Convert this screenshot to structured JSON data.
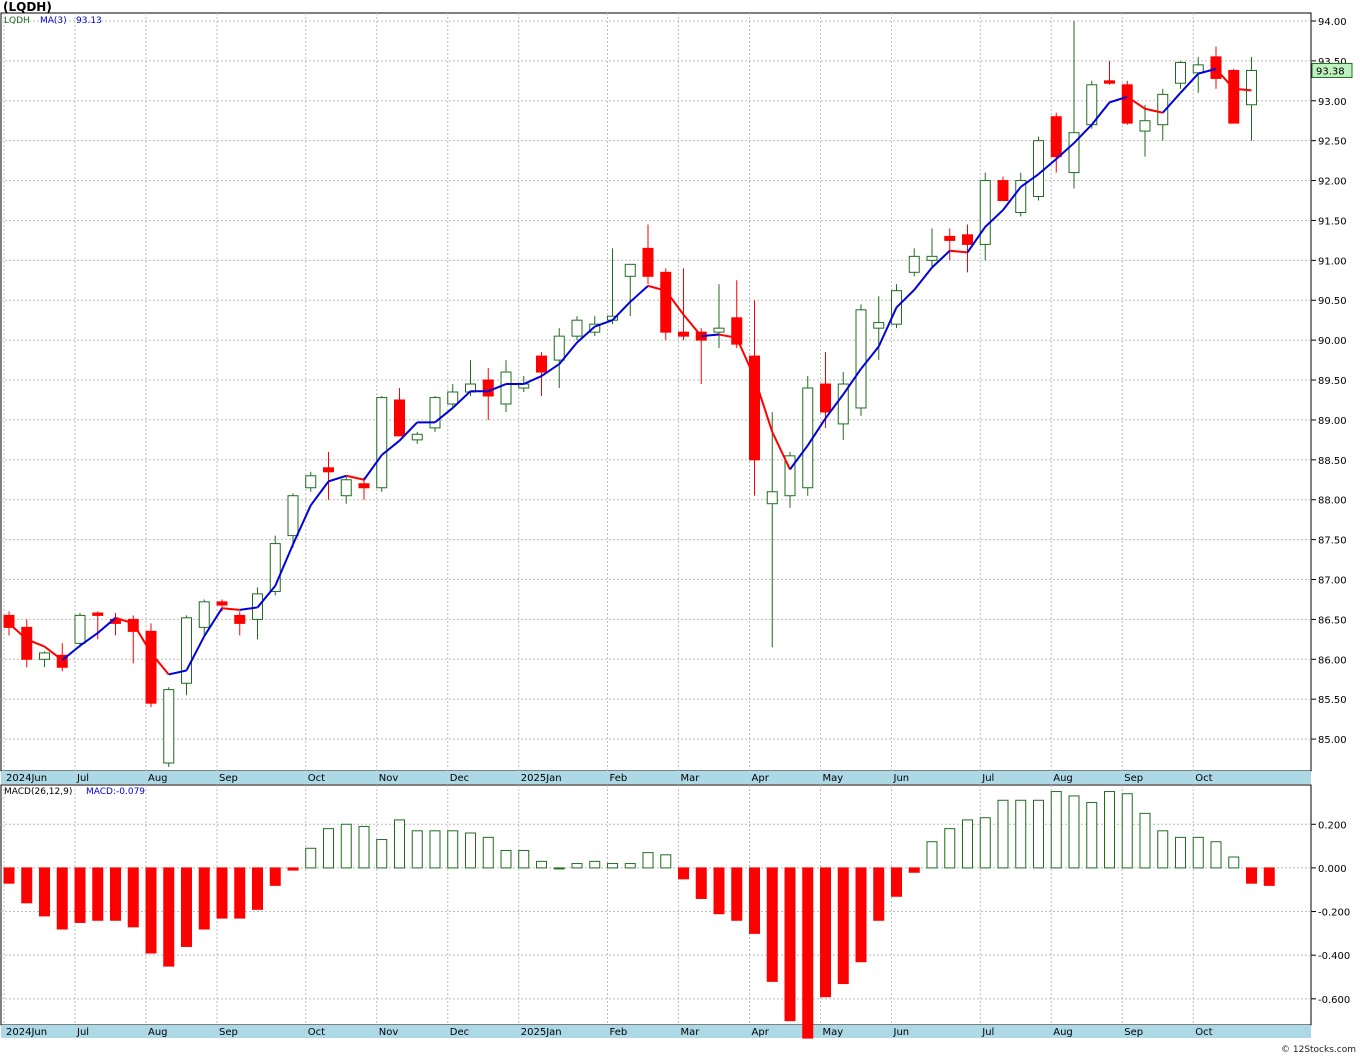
{
  "title": "(LQDH)",
  "credit": "© 12Stocks.com",
  "colors": {
    "up": "#1f6e1f",
    "down": "#ff0000",
    "ma_up": "#0000dd",
    "ma_down": "#ff0000",
    "axis_strip": "#add8e6",
    "last_price_bg": "#bff0bf"
  },
  "chart_data": [
    {
      "type": "candlestick",
      "legend": {
        "symbol": "LQDH",
        "ma_label": "MA(3)",
        "ma_value": "93.13"
      },
      "last_price": "93.38",
      "y_ticks": [
        "85.00",
        "85.50",
        "86.00",
        "86.50",
        "87.00",
        "87.50",
        "88.00",
        "88.50",
        "89.00",
        "89.50",
        "90.00",
        "90.50",
        "91.00",
        "91.50",
        "92.00",
        "92.50",
        "93.00",
        "93.50",
        "94.00"
      ],
      "ylim": [
        84.6,
        94.1
      ],
      "x_labels": [
        "2024Jun",
        "Jul",
        "Aug",
        "Sep",
        "Oct",
        "Nov",
        "Dec",
        "2025Jan",
        "Feb",
        "Mar",
        "Apr",
        "May",
        "Jun",
        "Jul",
        "Aug",
        "Sep",
        "Oct"
      ],
      "x_label_bars": [
        0,
        4,
        8,
        12,
        17,
        21,
        25,
        29,
        34,
        38,
        42,
        46,
        50,
        55,
        59,
        63,
        67
      ],
      "candles": [
        {
          "o": 86.55,
          "h": 86.6,
          "l": 86.3,
          "c": 86.4
        },
        {
          "o": 86.4,
          "h": 86.5,
          "l": 85.9,
          "c": 86.0
        },
        {
          "o": 86.0,
          "h": 86.1,
          "l": 85.9,
          "c": 86.08
        },
        {
          "o": 86.05,
          "h": 86.2,
          "l": 85.85,
          "c": 85.9
        },
        {
          "o": 86.2,
          "h": 86.58,
          "l": 86.15,
          "c": 86.55
        },
        {
          "o": 86.58,
          "h": 86.6,
          "l": 86.25,
          "c": 86.55
        },
        {
          "o": 86.5,
          "h": 86.58,
          "l": 86.3,
          "c": 86.45
        },
        {
          "o": 86.5,
          "h": 86.55,
          "l": 85.95,
          "c": 86.35
        },
        {
          "o": 86.35,
          "h": 86.45,
          "l": 85.4,
          "c": 85.45
        },
        {
          "o": 84.7,
          "h": 85.65,
          "l": 84.65,
          "c": 85.62
        },
        {
          "o": 85.7,
          "h": 86.55,
          "l": 85.55,
          "c": 86.52
        },
        {
          "o": 86.4,
          "h": 86.75,
          "l": 86.3,
          "c": 86.72
        },
        {
          "o": 86.72,
          "h": 86.75,
          "l": 86.6,
          "c": 86.68
        },
        {
          "o": 86.55,
          "h": 86.6,
          "l": 86.3,
          "c": 86.45
        },
        {
          "o": 86.5,
          "h": 86.9,
          "l": 86.25,
          "c": 86.82
        },
        {
          "o": 86.85,
          "h": 87.55,
          "l": 86.8,
          "c": 87.45
        },
        {
          "o": 87.55,
          "h": 88.08,
          "l": 87.4,
          "c": 88.05
        },
        {
          "o": 88.15,
          "h": 88.35,
          "l": 88.1,
          "c": 88.3
        },
        {
          "o": 88.4,
          "h": 88.6,
          "l": 88.0,
          "c": 88.35
        },
        {
          "o": 88.05,
          "h": 88.3,
          "l": 87.95,
          "c": 88.25
        },
        {
          "o": 88.2,
          "h": 88.28,
          "l": 88.0,
          "c": 88.15
        },
        {
          "o": 88.15,
          "h": 89.3,
          "l": 88.1,
          "c": 89.28
        },
        {
          "o": 89.25,
          "h": 89.4,
          "l": 88.8,
          "c": 88.8
        },
        {
          "o": 88.75,
          "h": 88.85,
          "l": 88.7,
          "c": 88.82
        },
        {
          "o": 88.9,
          "h": 89.3,
          "l": 88.85,
          "c": 89.28
        },
        {
          "o": 89.2,
          "h": 89.45,
          "l": 89.15,
          "c": 89.35
        },
        {
          "o": 89.35,
          "h": 89.75,
          "l": 89.3,
          "c": 89.45
        },
        {
          "o": 89.5,
          "h": 89.65,
          "l": 89.0,
          "c": 89.3
        },
        {
          "o": 89.2,
          "h": 89.75,
          "l": 89.1,
          "c": 89.6
        },
        {
          "o": 89.4,
          "h": 89.55,
          "l": 89.35,
          "c": 89.45
        },
        {
          "o": 89.8,
          "h": 89.85,
          "l": 89.3,
          "c": 89.6
        },
        {
          "o": 89.75,
          "h": 90.15,
          "l": 89.4,
          "c": 90.05
        },
        {
          "o": 90.05,
          "h": 90.3,
          "l": 90.0,
          "c": 90.25
        },
        {
          "o": 90.1,
          "h": 90.3,
          "l": 90.05,
          "c": 90.2
        },
        {
          "o": 90.25,
          "h": 91.15,
          "l": 90.2,
          "c": 90.3
        },
        {
          "o": 90.8,
          "h": 90.9,
          "l": 90.3,
          "c": 90.95
        },
        {
          "o": 91.15,
          "h": 91.45,
          "l": 90.7,
          "c": 90.8
        },
        {
          "o": 90.85,
          "h": 90.9,
          "l": 90.0,
          "c": 90.1
        },
        {
          "o": 90.1,
          "h": 90.9,
          "l": 90.0,
          "c": 90.05
        },
        {
          "o": 90.1,
          "h": 90.15,
          "l": 89.45,
          "c": 90.0
        },
        {
          "o": 90.1,
          "h": 90.7,
          "l": 89.9,
          "c": 90.15
        },
        {
          "o": 90.28,
          "h": 90.75,
          "l": 89.9,
          "c": 89.95
        },
        {
          "o": 89.8,
          "h": 90.5,
          "l": 88.05,
          "c": 88.5
        },
        {
          "o": 87.95,
          "h": 89.1,
          "l": 86.15,
          "c": 88.1
        },
        {
          "o": 88.05,
          "h": 88.6,
          "l": 87.9,
          "c": 88.55
        },
        {
          "o": 88.15,
          "h": 89.55,
          "l": 88.05,
          "c": 89.4
        },
        {
          "o": 89.45,
          "h": 89.85,
          "l": 88.9,
          "c": 89.1
        },
        {
          "o": 88.95,
          "h": 89.6,
          "l": 88.75,
          "c": 89.45
        },
        {
          "o": 89.15,
          "h": 90.45,
          "l": 89.05,
          "c": 90.38
        },
        {
          "o": 90.15,
          "h": 90.55,
          "l": 89.75,
          "c": 90.22
        },
        {
          "o": 90.2,
          "h": 90.7,
          "l": 90.15,
          "c": 90.62
        },
        {
          "o": 90.85,
          "h": 91.15,
          "l": 90.8,
          "c": 91.05
        },
        {
          "o": 91.0,
          "h": 91.4,
          "l": 90.9,
          "c": 91.05
        },
        {
          "o": 91.3,
          "h": 91.4,
          "l": 91.0,
          "c": 91.25
        },
        {
          "o": 91.32,
          "h": 91.45,
          "l": 90.85,
          "c": 91.2
        },
        {
          "o": 91.2,
          "h": 92.1,
          "l": 91.0,
          "c": 92.0
        },
        {
          "o": 92.0,
          "h": 92.05,
          "l": 91.75,
          "c": 91.75
        },
        {
          "o": 91.6,
          "h": 92.1,
          "l": 91.55,
          "c": 92.0
        },
        {
          "o": 91.8,
          "h": 92.55,
          "l": 91.75,
          "c": 92.5
        },
        {
          "o": 92.8,
          "h": 92.85,
          "l": 92.1,
          "c": 92.3
        },
        {
          "o": 92.1,
          "h": 94.0,
          "l": 91.9,
          "c": 92.6
        },
        {
          "o": 92.7,
          "h": 93.25,
          "l": 92.65,
          "c": 93.2
        },
        {
          "o": 93.25,
          "h": 93.5,
          "l": 93.2,
          "c": 93.22
        },
        {
          "o": 93.2,
          "h": 93.25,
          "l": 92.7,
          "c": 92.72
        },
        {
          "o": 92.62,
          "h": 92.95,
          "l": 92.3,
          "c": 92.75
        },
        {
          "o": 92.7,
          "h": 93.15,
          "l": 92.5,
          "c": 93.08
        },
        {
          "o": 93.22,
          "h": 93.5,
          "l": 93.15,
          "c": 93.48
        },
        {
          "o": 93.35,
          "h": 93.55,
          "l": 93.1,
          "c": 93.45
        },
        {
          "o": 93.55,
          "h": 93.68,
          "l": 93.15,
          "c": 93.28
        },
        {
          "o": 93.38,
          "h": 93.4,
          "l": 92.72,
          "c": 92.72
        },
        {
          "o": 92.95,
          "h": 93.55,
          "l": 92.5,
          "c": 93.38
        }
      ],
      "ma3": [
        86.45,
        86.25,
        86.16,
        85.99,
        86.17,
        86.33,
        86.52,
        86.45,
        86.08,
        85.81,
        85.86,
        86.29,
        86.64,
        86.62,
        86.65,
        86.92,
        87.44,
        87.93,
        88.23,
        88.3,
        88.25,
        88.56,
        88.74,
        88.97,
        88.97,
        89.15,
        89.36,
        89.36,
        89.45,
        89.45,
        89.55,
        89.7,
        89.97,
        90.17,
        90.25,
        90.48,
        90.68,
        90.62,
        90.32,
        90.05,
        90.07,
        90.03,
        89.53,
        88.85,
        88.38,
        88.68,
        89.02,
        89.32,
        89.64,
        89.92,
        90.41,
        90.63,
        90.91,
        91.12,
        91.1,
        91.42,
        91.63,
        91.92,
        92.08,
        92.27,
        92.47,
        92.7,
        92.98,
        93.05,
        92.9,
        92.85,
        93.1,
        93.34,
        93.4,
        93.15,
        93.13
      ]
    },
    {
      "type": "bar",
      "legend": {
        "name": "MACD(26,12,9)",
        "value_label": "MACD:-0.079"
      },
      "y_ticks": [
        "-0.600",
        "-0.400",
        "-0.200",
        "0.000",
        "0.200"
      ],
      "ylim": [
        -0.72,
        0.38
      ],
      "x_labels": [
        "2024Jun",
        "Jul",
        "Aug",
        "Sep",
        "Oct",
        "Nov",
        "Dec",
        "2025Jan",
        "Feb",
        "Mar",
        "Apr",
        "May",
        "Jun",
        "Jul",
        "Aug",
        "Sep",
        "Oct"
      ],
      "values": [
        -0.07,
        -0.16,
        -0.22,
        -0.28,
        -0.25,
        -0.24,
        -0.24,
        -0.27,
        -0.39,
        -0.45,
        -0.36,
        -0.28,
        -0.23,
        -0.23,
        -0.19,
        -0.08,
        -0.01,
        0.09,
        0.18,
        0.2,
        0.19,
        0.13,
        0.22,
        0.17,
        0.17,
        0.17,
        0.16,
        0.14,
        0.08,
        0.08,
        0.03,
        0.0,
        0.02,
        0.03,
        0.02,
        0.02,
        0.07,
        0.06,
        -0.05,
        -0.14,
        -0.21,
        -0.24,
        -0.3,
        -0.52,
        -0.7,
        -0.78,
        -0.59,
        -0.53,
        -0.43,
        -0.24,
        -0.13,
        -0.02,
        0.12,
        0.18,
        0.22,
        0.23,
        0.31,
        0.31,
        0.31,
        0.35,
        0.33,
        0.3,
        0.35,
        0.34,
        0.25,
        0.17,
        0.14,
        0.14,
        0.12,
        0.05,
        -0.07,
        -0.08
      ]
    }
  ]
}
